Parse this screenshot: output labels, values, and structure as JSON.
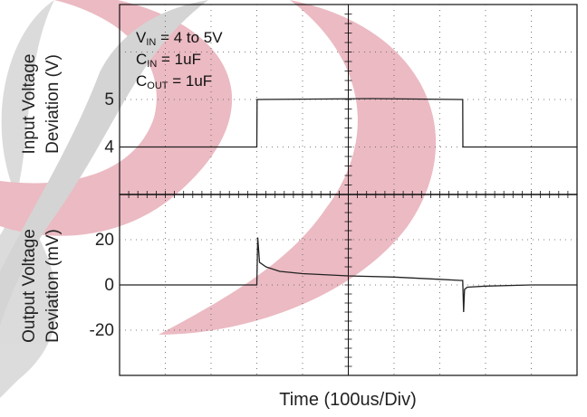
{
  "chart_data": [
    {
      "type": "line",
      "panel": "top",
      "ylabel_lines": [
        "Input Voltage",
        "Deviation (V)"
      ],
      "yticks": [
        {
          "value": 5,
          "label": "5"
        },
        {
          "value": 4,
          "label": "4"
        }
      ],
      "ylim": [
        3,
        7
      ],
      "xlim": [
        0,
        1000
      ],
      "grid": true,
      "annotations": [
        {
          "main": "V",
          "sub": "IN",
          "rest": " = 4 to 5V"
        },
        {
          "main": "C",
          "sub": "IN",
          "rest": " = 1uF"
        },
        {
          "main": "C",
          "sub": "OUT",
          "rest": " = 1uF"
        }
      ],
      "series": [
        {
          "x": [
            0,
            150,
            300,
            300.5,
            550,
            750,
            750.5,
            1000
          ],
          "y": [
            4,
            4,
            4,
            5,
            5.02,
            5,
            4,
            4
          ],
          "color": "#222222"
        }
      ]
    },
    {
      "type": "line",
      "panel": "bottom",
      "ylabel_lines": [
        "Output Voltage",
        "Deviation  (mV)"
      ],
      "yticks": [
        {
          "value": 20,
          "label": "20"
        },
        {
          "value": 0,
          "label": "0"
        },
        {
          "value": -20,
          "label": "-20"
        }
      ],
      "ylim": [
        -40,
        40
      ],
      "xlim": [
        0,
        1000
      ],
      "xlabel": "Time  (100us/Div)",
      "grid": true,
      "series": [
        {
          "x": [
            0,
            150,
            296,
            300,
            302,
            306,
            320,
            350,
            400,
            500,
            600,
            700,
            745,
            750,
            752,
            754,
            760,
            800,
            900,
            1000
          ],
          "y": [
            0,
            0,
            0,
            0,
            21,
            10,
            8,
            6,
            5,
            4,
            3.5,
            2.5,
            2,
            2,
            -12,
            -2,
            -1,
            -0.5,
            0,
            0
          ],
          "color": "#222222"
        }
      ]
    }
  ]
}
